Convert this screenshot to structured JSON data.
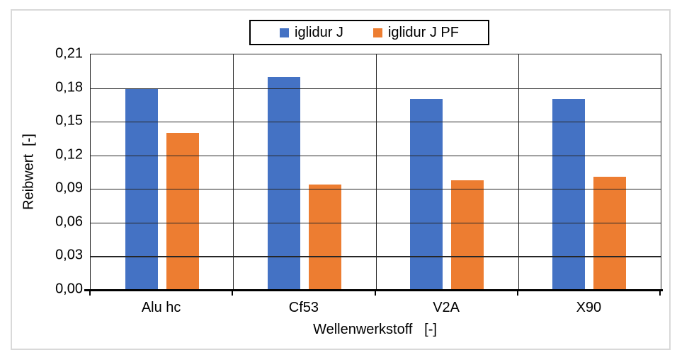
{
  "chart_data": {
    "type": "bar",
    "title": "",
    "categories": [
      "Alu hc",
      "Cf53",
      "V2A",
      "X90"
    ],
    "series": [
      {
        "name": "iglidur J",
        "color": "#4472C4",
        "values": [
          0.18,
          0.19,
          0.17,
          0.17
        ]
      },
      {
        "name": "iglidur J PF",
        "color": "#ED7D31",
        "values": [
          0.14,
          0.094,
          0.098,
          0.101
        ]
      }
    ],
    "xlabel": "Wellenwerkstoff   [-]",
    "ylabel": "Reibwert  [-]",
    "ylim": [
      0,
      0.21
    ],
    "ytick_step": 0.03,
    "ytick_labels": [
      "0,21",
      "0,18",
      "0,15",
      "0,12",
      "0,09",
      "0,06",
      "0,03",
      "0,00"
    ],
    "decimal_separator": ",",
    "grid": true,
    "legend_position": "top-center",
    "colors": {
      "frame_border": "#d9d9d9",
      "gridline": "#262626",
      "axis_line": "#000000",
      "text": "#000000",
      "background": "#ffffff"
    }
  }
}
